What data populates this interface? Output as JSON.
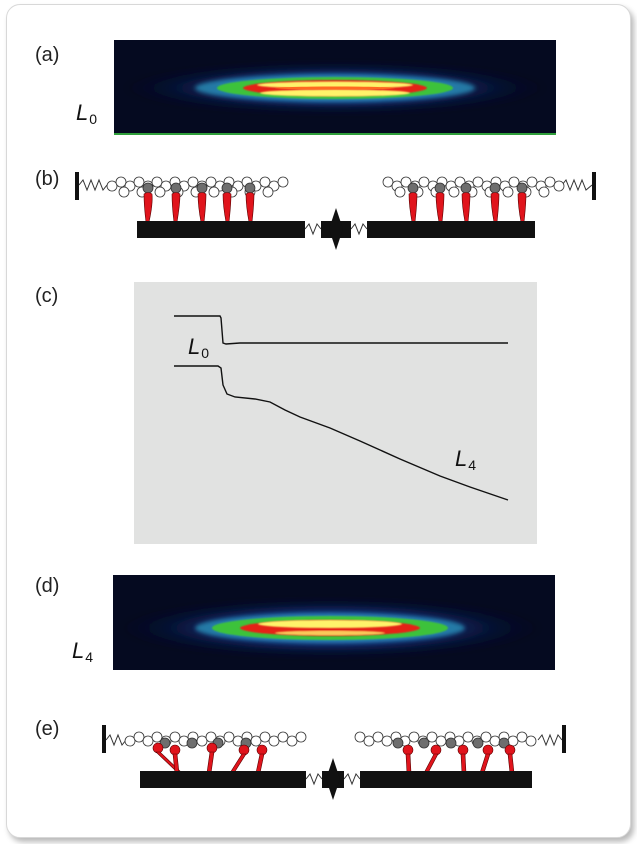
{
  "panels": {
    "a": {
      "letter": "(a)",
      "length_label": "L",
      "length_sub": "0"
    },
    "b": {
      "letter": "(b)"
    },
    "c": {
      "letter": "(c)",
      "trace_label": "L",
      "trace_label_sub": "0",
      "end_label": "L",
      "end_label_sub": "4"
    },
    "d": {
      "letter": "(d)",
      "length_label": "L",
      "length_sub": "4"
    },
    "e": {
      "letter": "(e)"
    }
  },
  "colors": {
    "myosin_head": "#e0141c",
    "actin_bead_dark": "#6e6e6e",
    "filament": "#111111",
    "plot_background": "#e1e2e1",
    "xray_background": "#050a20"
  }
}
